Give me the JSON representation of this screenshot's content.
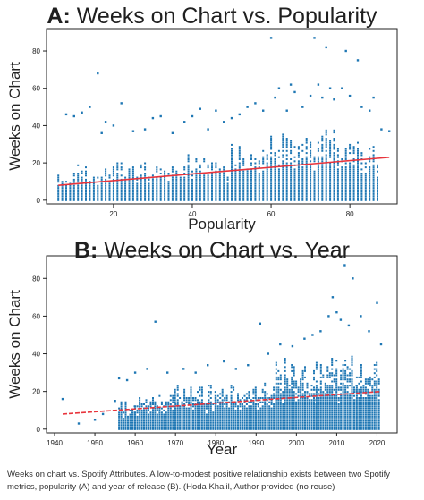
{
  "caption": "Weeks on chart vs. Spotify Attributes. A low-to-modest positive relationship exists between two Spotify metrics, popularity (A) and year of release (B). (Hoda Khalil, Author provided (no reuse)",
  "colors": {
    "points": "#1f77b4",
    "trend": "#e8343c",
    "text": "#222222"
  },
  "chart_data": [
    {
      "type": "scatter",
      "title_letter": "A:",
      "title_text": "Weeks on Chart vs. Popularity",
      "xlabel": "Popularity",
      "ylabel": "Weeks on Chart",
      "xlim": [
        3,
        92
      ],
      "ylim": [
        -2,
        92
      ],
      "xticks": [
        20,
        40,
        60,
        80
      ],
      "yticks": [
        0,
        20,
        40,
        60,
        80
      ],
      "grid": false,
      "trend": {
        "x": [
          6,
          90
        ],
        "y": [
          8,
          23
        ]
      },
      "cloud": [
        {
          "x": [
            6,
            10
          ],
          "y": [
            0,
            16
          ]
        },
        {
          "x": [
            10,
            20
          ],
          "y": [
            0,
            20
          ]
        },
        {
          "x": [
            20,
            30
          ],
          "y": [
            0,
            23
          ]
        },
        {
          "x": [
            30,
            40
          ],
          "y": [
            0,
            25
          ]
        },
        {
          "x": [
            40,
            50
          ],
          "y": [
            0,
            27
          ]
        },
        {
          "x": [
            50,
            60
          ],
          "y": [
            0,
            30
          ]
        },
        {
          "x": [
            60,
            70
          ],
          "y": [
            0,
            37
          ]
        },
        {
          "x": [
            70,
            80
          ],
          "y": [
            0,
            38
          ]
        },
        {
          "x": [
            80,
            88
          ],
          "y": [
            0,
            33
          ]
        }
      ],
      "outliers": [
        [
          8,
          46
        ],
        [
          10,
          45
        ],
        [
          12,
          47
        ],
        [
          14,
          50
        ],
        [
          16,
          68
        ],
        [
          17,
          36
        ],
        [
          18,
          42
        ],
        [
          20,
          40
        ],
        [
          22,
          52
        ],
        [
          25,
          37
        ],
        [
          28,
          38
        ],
        [
          30,
          44
        ],
        [
          32,
          45
        ],
        [
          35,
          36
        ],
        [
          38,
          42
        ],
        [
          40,
          45
        ],
        [
          42,
          49
        ],
        [
          44,
          38
        ],
        [
          46,
          48
        ],
        [
          48,
          42
        ],
        [
          50,
          44
        ],
        [
          52,
          46
        ],
        [
          54,
          50
        ],
        [
          56,
          52
        ],
        [
          58,
          48
        ],
        [
          60,
          87
        ],
        [
          61,
          55
        ],
        [
          62,
          60
        ],
        [
          64,
          48
        ],
        [
          65,
          62
        ],
        [
          66,
          58
        ],
        [
          68,
          50
        ],
        [
          70,
          56
        ],
        [
          71,
          87
        ],
        [
          72,
          62
        ],
        [
          73,
          55
        ],
        [
          74,
          82
        ],
        [
          75,
          60
        ],
        [
          76,
          54
        ],
        [
          78,
          60
        ],
        [
          79,
          80
        ],
        [
          80,
          56
        ],
        [
          82,
          75
        ],
        [
          83,
          50
        ],
        [
          85,
          48
        ],
        [
          86,
          55
        ],
        [
          88,
          38
        ],
        [
          90,
          37
        ]
      ]
    },
    {
      "type": "scatter",
      "title_letter": "B:",
      "title_text": "Weeks on Chart vs. Year",
      "xlabel": "Year",
      "ylabel": "Weeks on Chart",
      "xlim": [
        1938,
        2025
      ],
      "ylim": [
        -2,
        92
      ],
      "xticks": [
        1940,
        1950,
        1960,
        1970,
        1980,
        1990,
        2000,
        2010,
        2020
      ],
      "yticks": [
        0,
        20,
        40,
        60,
        80
      ],
      "grid": false,
      "trend": {
        "x": [
          1942,
          2021
        ],
        "y": [
          8,
          20
        ]
      },
      "cloud": [
        {
          "x": [
            1956,
            1960
          ],
          "y": [
            0,
            18
          ]
        },
        {
          "x": [
            1960,
            1970
          ],
          "y": [
            0,
            22
          ]
        },
        {
          "x": [
            1970,
            1980
          ],
          "y": [
            0,
            24
          ]
        },
        {
          "x": [
            1980,
            1990
          ],
          "y": [
            0,
            25
          ]
        },
        {
          "x": [
            1990,
            1995
          ],
          "y": [
            0,
            30
          ]
        },
        {
          "x": [
            1995,
            2005
          ],
          "y": [
            0,
            38
          ]
        },
        {
          "x": [
            2005,
            2015
          ],
          "y": [
            0,
            40
          ]
        },
        {
          "x": [
            2015,
            2021
          ],
          "y": [
            0,
            36
          ]
        }
      ],
      "outliers": [
        [
          1942,
          16
        ],
        [
          1946,
          3
        ],
        [
          1950,
          5
        ],
        [
          1952,
          8
        ],
        [
          1955,
          15
        ],
        [
          1956,
          27
        ],
        [
          1958,
          26
        ],
        [
          1960,
          30
        ],
        [
          1963,
          32
        ],
        [
          1965,
          57
        ],
        [
          1968,
          30
        ],
        [
          1972,
          32
        ],
        [
          1975,
          30
        ],
        [
          1978,
          34
        ],
        [
          1982,
          36
        ],
        [
          1985,
          32
        ],
        [
          1988,
          34
        ],
        [
          1991,
          56
        ],
        [
          1993,
          40
        ],
        [
          1996,
          45
        ],
        [
          1999,
          44
        ],
        [
          2002,
          48
        ],
        [
          2004,
          50
        ],
        [
          2006,
          52
        ],
        [
          2008,
          60
        ],
        [
          2009,
          70
        ],
        [
          2010,
          62
        ],
        [
          2011,
          58
        ],
        [
          2012,
          87
        ],
        [
          2013,
          55
        ],
        [
          2014,
          80
        ],
        [
          2016,
          60
        ],
        [
          2018,
          52
        ],
        [
          2020,
          67
        ],
        [
          2021,
          45
        ]
      ]
    }
  ]
}
